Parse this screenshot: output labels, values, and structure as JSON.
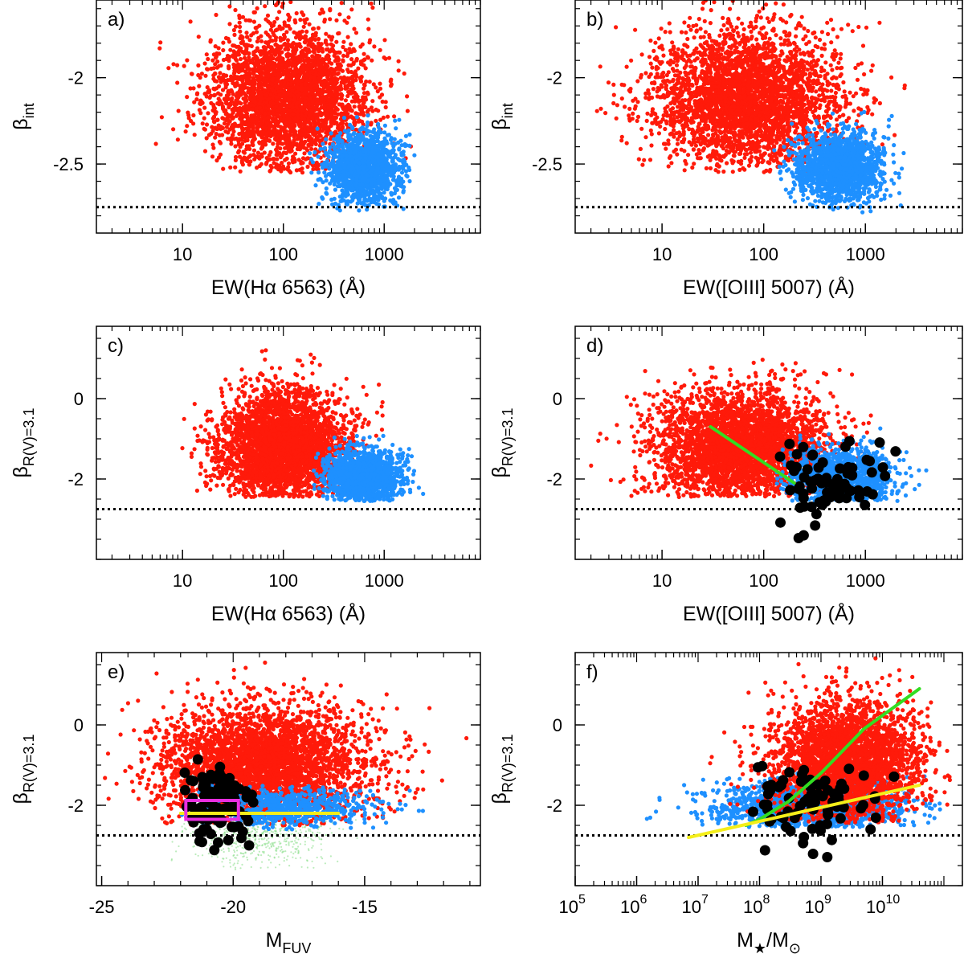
{
  "colors": {
    "red": "#ff1a0a",
    "blue": "#1e90ff",
    "black": "#000000",
    "green": "#33dd22",
    "yellow": "#f4ee1a",
    "magenta": "#e82fe0",
    "green_faint": "#7ad97a"
  },
  "chart_data": [
    {
      "id": "a",
      "type": "scatter",
      "panel_tag": "a)",
      "xscale": "log",
      "xlim": [
        1.4,
        9000
      ],
      "ylim": [
        -2.9,
        -1.55
      ],
      "xticks": [
        10,
        100,
        1000
      ],
      "xtick_labels": [
        "10",
        "100",
        "1000"
      ],
      "yticks": [
        -2,
        -2.5
      ],
      "ytick_labels": [
        "-2",
        "-2.5"
      ],
      "xlabel": "EW(Hα 6563) (Å)",
      "ylabel_main": "β",
      "ylabel_sub": "int",
      "hline": -2.75,
      "series": [
        {
          "name": "red",
          "color": "red",
          "n": 3300,
          "kind": "logcloud",
          "cx": 2.05,
          "sx": 0.4,
          "cy": -2.12,
          "sy": 0.2,
          "ymin": -2.55,
          "ymax": -1.55,
          "xmin": 0.3,
          "xmax": 3.4
        },
        {
          "name": "blue",
          "color": "blue",
          "n": 1500,
          "kind": "logcloud",
          "cx": 2.8,
          "sx": 0.18,
          "cy": -2.52,
          "sy": 0.1,
          "ymin": -2.78,
          "ymax": -1.8,
          "xmin": 2.2,
          "xmax": 3.75
        }
      ]
    },
    {
      "id": "b",
      "type": "scatter",
      "panel_tag": "b)",
      "xscale": "log",
      "xlim": [
        1.4,
        9000
      ],
      "ylim": [
        -2.9,
        -1.55
      ],
      "xticks": [
        10,
        100,
        1000
      ],
      "xtick_labels": [
        "10",
        "100",
        "1000"
      ],
      "yticks": [
        -2,
        -2.5
      ],
      "ytick_labels": [
        "-2",
        "-2.5"
      ],
      "xlabel": "EW([OIII] 5007) (Å)",
      "ylabel_main": "β",
      "ylabel_sub": "int",
      "hline": -2.75,
      "series": [
        {
          "name": "red",
          "color": "red",
          "n": 3500,
          "kind": "logcloud",
          "cx": 1.85,
          "sx": 0.45,
          "cy": -2.12,
          "sy": 0.2,
          "ymin": -2.55,
          "ymax": -1.55,
          "xmin": 0.2,
          "xmax": 3.4
        },
        {
          "name": "blue",
          "color": "blue",
          "n": 1500,
          "kind": "logcloud",
          "cx": 2.75,
          "sx": 0.22,
          "cy": -2.52,
          "sy": 0.1,
          "ymin": -2.78,
          "ymax": -1.8,
          "xmin": 2.1,
          "xmax": 3.85
        }
      ]
    },
    {
      "id": "c",
      "type": "scatter",
      "panel_tag": "c)",
      "xscale": "log",
      "xlim": [
        1.4,
        9000
      ],
      "ylim": [
        -4,
        1.8
      ],
      "xticks": [
        10,
        100,
        1000
      ],
      "xtick_labels": [
        "10",
        "100",
        "1000"
      ],
      "yticks": [
        0,
        -2
      ],
      "ytick_labels": [
        "0",
        "-2"
      ],
      "xlabel": "EW(Hα 6563) (Å)",
      "ylabel_main": "β",
      "ylabel_sub": "R(V)=3.1",
      "hline": -2.75,
      "series": [
        {
          "name": "red",
          "color": "red",
          "n": 3300,
          "kind": "logcloud",
          "cx": 2.0,
          "sx": 0.32,
          "cy": -1.2,
          "sy": 0.7,
          "ymin": -2.45,
          "ymax": 1.7,
          "xmin": 0.35,
          "xmax": 3.3
        },
        {
          "name": "blue",
          "color": "blue",
          "n": 1400,
          "kind": "logcloud",
          "cx": 2.78,
          "sx": 0.2,
          "cy": -1.95,
          "sy": 0.35,
          "ymin": -2.55,
          "ymax": 0.9,
          "xmin": 2.3,
          "xmax": 3.75
        }
      ]
    },
    {
      "id": "d",
      "type": "scatter",
      "panel_tag": "d)",
      "xscale": "log",
      "xlim": [
        1.4,
        9000
      ],
      "ylim": [
        -4,
        1.8
      ],
      "xticks": [
        10,
        100,
        1000
      ],
      "xtick_labels": [
        "10",
        "100",
        "1000"
      ],
      "yticks": [
        0,
        -2
      ],
      "ytick_labels": [
        "0",
        "-2"
      ],
      "xlabel": "EW([OIII] 5007) (Å)",
      "ylabel_main": "β",
      "ylabel_sub": "R(V)=3.1",
      "hline": -2.75,
      "series": [
        {
          "name": "red",
          "color": "red",
          "n": 3500,
          "kind": "logcloud",
          "cx": 1.75,
          "sx": 0.42,
          "cy": -1.2,
          "sy": 0.7,
          "ymin": -2.45,
          "ymax": 1.7,
          "xmin": 0.3,
          "xmax": 3.3
        },
        {
          "name": "blue",
          "color": "blue",
          "n": 1400,
          "kind": "logcloud",
          "cx": 2.75,
          "sx": 0.25,
          "cy": -1.95,
          "sy": 0.35,
          "ymin": -2.55,
          "ymax": 0.9,
          "xmin": 2.1,
          "xmax": 3.8
        },
        {
          "name": "black",
          "color": "black",
          "n": 80,
          "kind": "logcloud",
          "big": true,
          "cx": 2.6,
          "sx": 0.3,
          "cy": -2.1,
          "sy": 0.5,
          "ymin": -3.5,
          "ymax": -0.85,
          "xmin": 2.1,
          "xmax": 3.7
        }
      ],
      "lines": [
        {
          "color": "green",
          "points": [
            [
              30,
              -0.7
            ],
            [
              200,
              -2.1
            ]
          ]
        }
      ]
    },
    {
      "id": "e",
      "type": "scatter",
      "panel_tag": "e)",
      "xscale": "linear",
      "xlim": [
        -25.2,
        -10.6
      ],
      "ylim": [
        -4,
        1.8
      ],
      "xticks": [
        -25,
        -20,
        -15
      ],
      "xtick_labels": [
        "-25",
        "-20",
        "-15"
      ],
      "yticks": [
        0,
        -2
      ],
      "ytick_labels": [
        "0",
        "-2"
      ],
      "xlabel": "M",
      "xlabel_sub": "FUV",
      "ylabel_main": "β",
      "ylabel_sub": "R(V)=3.1",
      "hline": -2.75,
      "series": [
        {
          "name": "green",
          "color": "green_faint",
          "n": 700,
          "kind": "cloud",
          "small": true,
          "cx": -19.0,
          "sx": 1.5,
          "cy": -2.7,
          "sy": 0.4,
          "ymin": -3.6,
          "ymax": -1.9,
          "xmin": -22.5,
          "xmax": -15
        },
        {
          "name": "red",
          "color": "red",
          "n": 3500,
          "kind": "cloud",
          "cx": -18.8,
          "sx": 2.0,
          "cy": -1.0,
          "sy": 0.75,
          "ymin": -2.5,
          "ymax": 1.7,
          "xmin": -25,
          "xmax": -11
        },
        {
          "name": "blue",
          "color": "blue",
          "n": 700,
          "kind": "cloud",
          "cx": -18.0,
          "sx": 1.6,
          "cy": -2.05,
          "sy": 0.25,
          "ymin": -2.6,
          "ymax": -1.5,
          "xmin": -22,
          "xmax": -12.5
        },
        {
          "name": "black",
          "color": "black",
          "n": 100,
          "kind": "cloud",
          "big": true,
          "cx": -20.6,
          "sx": 0.65,
          "cy": -2.0,
          "sy": 0.55,
          "ymin": -3.5,
          "ymax": -0.8,
          "xmin": -22.5,
          "xmax": -19.2
        }
      ],
      "lines": [
        {
          "color": "yellow",
          "points": [
            [
              -22,
              -2.2
            ],
            [
              -16,
              -2.2
            ]
          ]
        }
      ],
      "box": {
        "color": "magenta",
        "x0": -21.8,
        "x1": -19.8,
        "y0": -2.35,
        "y1": -1.88
      }
    },
    {
      "id": "f",
      "type": "scatter",
      "panel_tag": "f)",
      "xscale": "log",
      "xlim": [
        100000,
        200000000000
      ],
      "ylim": [
        -4,
        1.8
      ],
      "xticks": [
        100000,
        1000000,
        10000000,
        100000000,
        1000000000,
        10000000000
      ],
      "xtick_labels": [
        "10",
        "10",
        "10",
        "10",
        "10",
        "10"
      ],
      "xtick_exponents": [
        "5",
        "6",
        "7",
        "8",
        "9",
        "10"
      ],
      "yticks": [
        0,
        -2
      ],
      "ytick_labels": [
        "0",
        "-2"
      ],
      "xlabel": "M",
      "xlabel_sub": "★",
      "xlabel_mid": "/M",
      "xlabel_sub2": "⊙",
      "ylabel_main": "β",
      "ylabel_sub": "R(V)=3.1",
      "hline": -2.75,
      "series": [
        {
          "name": "blue",
          "color": "blue",
          "n": 1600,
          "kind": "logcloud",
          "cx": 8.9,
          "sx": 0.8,
          "cy": -2.0,
          "sy": 0.3,
          "ymin": -2.55,
          "ymax": -1.0,
          "xmin": 5.3,
          "xmax": 11.0
        },
        {
          "name": "red",
          "color": "red",
          "n": 3000,
          "kind": "logcloud",
          "cx": 9.4,
          "sx": 0.6,
          "cy": -0.9,
          "sy": 0.75,
          "ymin": -2.45,
          "ymax": 1.7,
          "xmin": 5.2,
          "xmax": 11.1
        },
        {
          "name": "black",
          "color": "black",
          "n": 85,
          "kind": "logcloud",
          "big": true,
          "cx": 8.9,
          "sx": 0.55,
          "cy": -1.95,
          "sy": 0.55,
          "ymin": -3.5,
          "ymax": -0.85,
          "xmin": 7.8,
          "xmax": 10.3
        }
      ],
      "lines": [
        {
          "color": "green",
          "points": [
            [
              60000000,
              -2.5
            ],
            [
              100000000,
              -2.35
            ],
            [
              300000000,
              -1.9
            ],
            [
              1000000000,
              -1.2
            ],
            [
              5000000000,
              -0.1
            ],
            [
              40000000000,
              0.9
            ]
          ]
        },
        {
          "color": "yellow",
          "points": [
            [
              7000000,
              -2.8
            ],
            [
              40000000000,
              -1.5
            ]
          ]
        }
      ]
    }
  ]
}
